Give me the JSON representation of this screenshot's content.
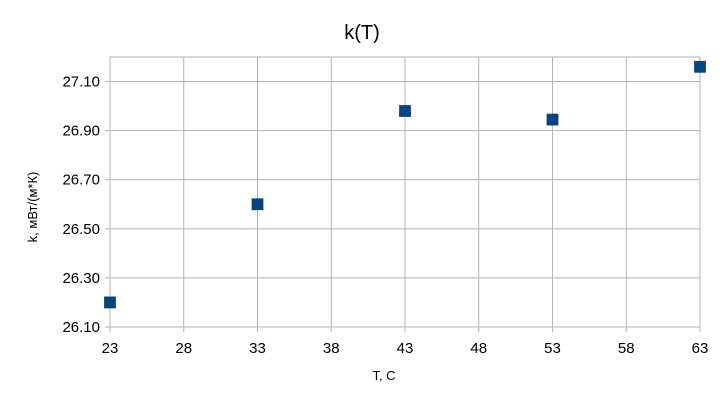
{
  "chart_data": {
    "type": "scatter",
    "title": "k(T)",
    "xlabel": "T, C",
    "ylabel": "k, мВт/(м*К)",
    "xlim": [
      23,
      63
    ],
    "ylim": [
      26.1,
      27.2
    ],
    "xticks": [
      23,
      28,
      33,
      38,
      43,
      48,
      53,
      58,
      63
    ],
    "xtick_labels": [
      "23",
      "28",
      "33",
      "38",
      "43",
      "48",
      "53",
      "58",
      "63"
    ],
    "yticks": [
      26.1,
      26.3,
      26.5,
      26.7,
      26.9,
      27.1
    ],
    "ytick_labels": [
      "26.10",
      "26.30",
      "26.50",
      "26.70",
      "26.90",
      "27.10"
    ],
    "grid": true,
    "marker": "square",
    "marker_color": "#004586",
    "series": [
      {
        "x": [
          23,
          33,
          43,
          53,
          63
        ],
        "y": [
          26.2,
          26.6,
          26.98,
          26.945,
          27.16
        ]
      }
    ]
  }
}
